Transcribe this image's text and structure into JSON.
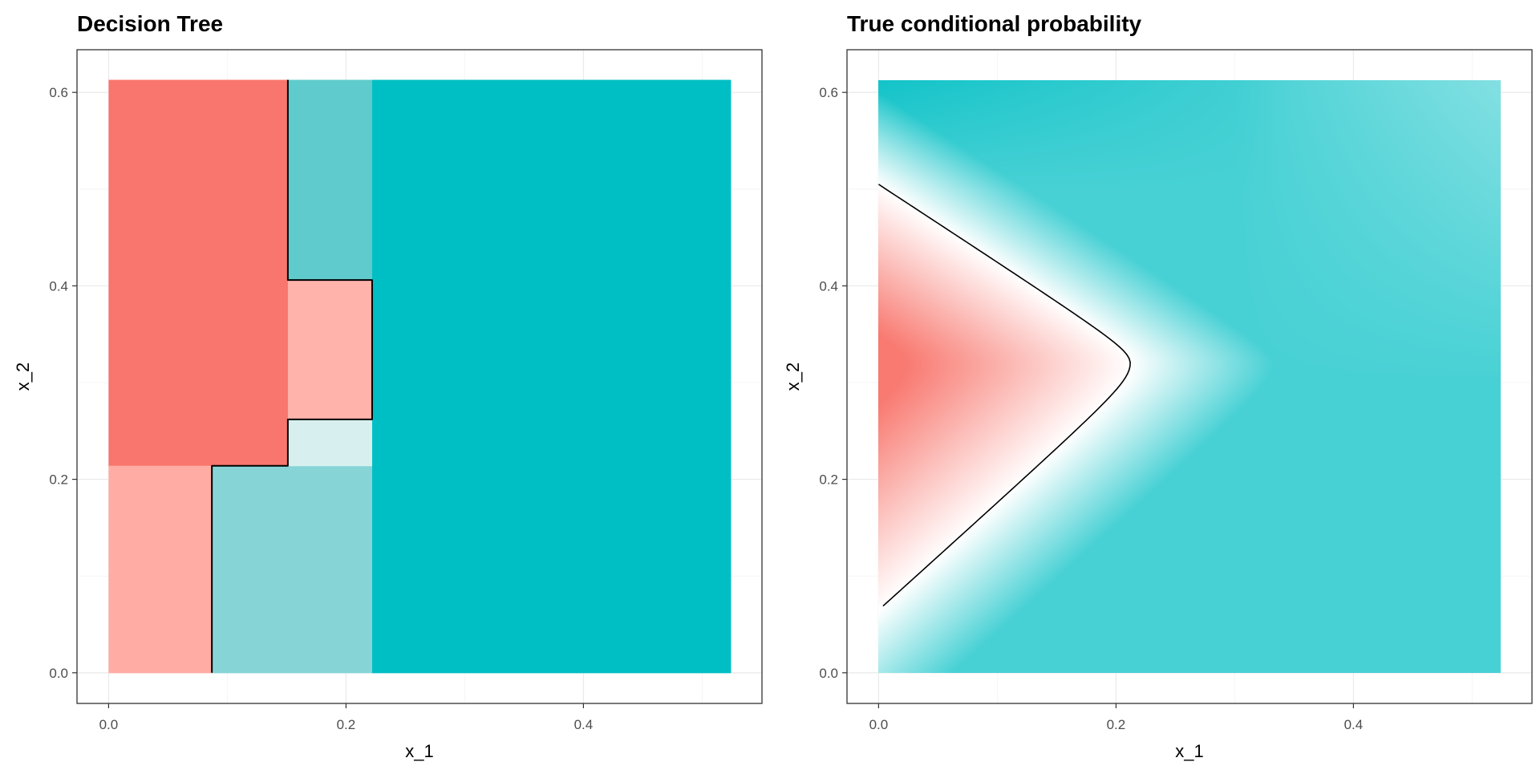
{
  "chart_data": [
    {
      "type": "heatmap",
      "title": "Decision Tree",
      "xlabel": "x_1",
      "ylabel": "x_2",
      "xlim": [
        -0.027,
        0.55
      ],
      "ylim": [
        -0.032,
        0.644
      ],
      "xticks": [
        "0.0",
        "0.2",
        "0.4"
      ],
      "xtick_values": [
        0,
        0.2,
        0.4
      ],
      "yticks": [
        "0.0",
        "0.2",
        "0.4",
        "0.6"
      ],
      "ytick_values": [
        0,
        0.2,
        0.4,
        0.6
      ],
      "grid": true,
      "regions": [
        {
          "x": [
            0,
            0.151
          ],
          "y": [
            0.214,
            0.613
          ],
          "color": "#F8766D"
        },
        {
          "x": [
            0,
            0.087
          ],
          "y": [
            0,
            0.214
          ],
          "color": "#FFADA4"
        },
        {
          "x": [
            0.087,
            0.222
          ],
          "y": [
            0,
            0.214
          ],
          "color": "#87D4D7"
        },
        {
          "x": [
            0.151,
            0.222
          ],
          "y": [
            0.214,
            0.262
          ],
          "color": "#D7EFEF"
        },
        {
          "x": [
            0.151,
            0.222
          ],
          "y": [
            0.262,
            0.406
          ],
          "color": "#FFB3AB"
        },
        {
          "x": [
            0.151,
            0.222
          ],
          "y": [
            0.406,
            0.613
          ],
          "color": "#5FCBCC"
        },
        {
          "x": [
            0.222,
            0.524
          ],
          "y": [
            0,
            0.613
          ],
          "color": "#00BFC4"
        }
      ],
      "boundary": [
        [
          0.151,
          0.613
        ],
        [
          0.151,
          0.406
        ],
        [
          0.222,
          0.406
        ],
        [
          0.222,
          0.262
        ],
        [
          0.151,
          0.262
        ],
        [
          0.151,
          0.214
        ],
        [
          0.087,
          0.214
        ],
        [
          0.087,
          0
        ]
      ]
    },
    {
      "type": "heatmap",
      "title": "True conditional probability",
      "xlabel": "x_1",
      "ylabel": "x_2",
      "xlim": [
        -0.027,
        0.55
      ],
      "ylim": [
        -0.032,
        0.644
      ],
      "xticks": [
        "0.0",
        "0.2",
        "0.4"
      ],
      "xtick_values": [
        0,
        0.2,
        0.4
      ],
      "yticks": [
        "0.0",
        "0.2",
        "0.4",
        "0.6"
      ],
      "ytick_values": [
        0,
        0.2,
        0.4,
        0.6
      ],
      "grid": true,
      "data_extent": {
        "x": [
          0,
          0.524
        ],
        "y": [
          0,
          0.613
        ]
      },
      "contour_0_5": {
        "tip": [
          0.212,
          0.32
        ],
        "left_ends": [
          [
            0,
            0.505
          ],
          [
            0,
            0.065
          ]
        ]
      },
      "low_color": "#F8766D",
      "mid_color": "#FFFFFF",
      "high_color": "#00BFC4"
    }
  ]
}
